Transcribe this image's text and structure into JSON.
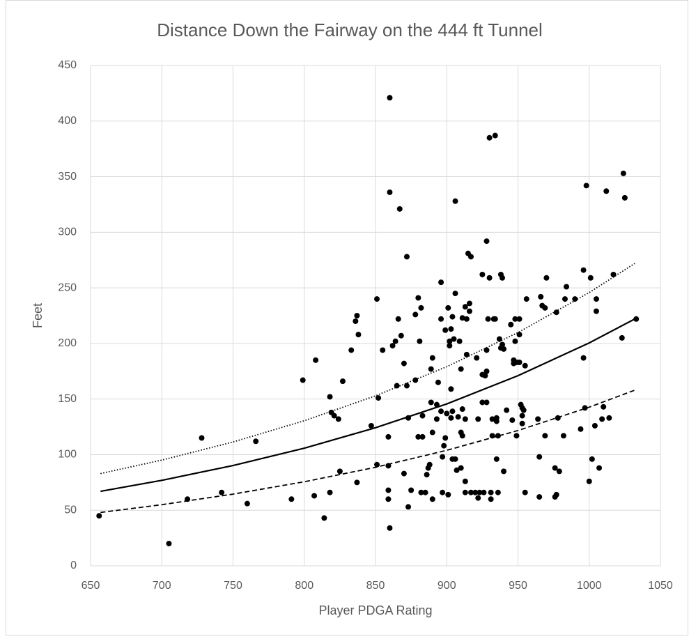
{
  "chart_data": {
    "type": "scatter",
    "title": "Distance Down the Fairway on the 444 ft Tunnel",
    "x_label": "Player PDGA Rating",
    "y_label": "Feet",
    "color": "#000000",
    "x": [
      656,
      705,
      718,
      728,
      742,
      760,
      766,
      791,
      799,
      807,
      808,
      814,
      818,
      818,
      819,
      821,
      824,
      825,
      827,
      833,
      836,
      837,
      837,
      838,
      847,
      851,
      851,
      852,
      855,
      859,
      859,
      859,
      859,
      860,
      860,
      860,
      862,
      864,
      865,
      866,
      867,
      868,
      870,
      870,
      872,
      872,
      873,
      873,
      875,
      878,
      878,
      880,
      880,
      881,
      882,
      882,
      883,
      883,
      886,
      885,
      887,
      888,
      889,
      889,
      890,
      890,
      890,
      893,
      893,
      894,
      896,
      896,
      896,
      897,
      897,
      898,
      899,
      899,
      900,
      901,
      901,
      902,
      902,
      903,
      904,
      903,
      903,
      904,
      904,
      905,
      906,
      906,
      906,
      907,
      908,
      909,
      910,
      910,
      910,
      911,
      911,
      911,
      913,
      913,
      913,
      913,
      914,
      914,
      915,
      916,
      916,
      917,
      917,
      920,
      921,
      922,
      922,
      923,
      925,
      925,
      925,
      926,
      927,
      928,
      928,
      928,
      928,
      929,
      930,
      930,
      931,
      931,
      932,
      932,
      933,
      934,
      934,
      935,
      935,
      935,
      936,
      936,
      937,
      938,
      938,
      940,
      939,
      939,
      940,
      942,
      945,
      946,
      947,
      947,
      948,
      948,
      949,
      949,
      951,
      951,
      951,
      952,
      953,
      953,
      953,
      954,
      955,
      955,
      956,
      964,
      965,
      965,
      966,
      967,
      969,
      969,
      970,
      976,
      976,
      977,
      977,
      978,
      979,
      982,
      983,
      984,
      990,
      994,
      996,
      996,
      997,
      998,
      1000,
      1001,
      1002,
      1004,
      1005,
      1005,
      1007,
      1009,
      1010,
      1012,
      1014,
      1017,
      1023,
      1024,
      1025,
      1033
    ],
    "values": [
      45,
      20,
      60,
      115,
      66,
      56,
      112,
      60,
      167,
      63,
      185,
      43,
      66,
      152,
      138,
      135,
      132,
      85,
      166,
      194,
      220,
      225,
      75,
      208,
      126,
      240,
      91,
      151,
      194,
      68,
      60,
      116,
      90,
      34,
      421,
      336,
      198,
      202,
      162,
      222,
      321,
      207,
      83,
      182,
      278,
      162,
      53,
      133,
      68,
      167,
      226,
      241,
      116,
      202,
      232,
      66,
      116,
      135,
      82,
      66,
      88,
      91,
      177,
      147,
      60,
      120,
      187,
      145,
      132,
      165,
      255,
      222,
      139,
      66,
      98,
      108,
      212,
      115,
      137,
      232,
      64,
      202,
      198,
      133,
      96,
      159,
      213,
      224,
      139,
      204,
      96,
      328,
      245,
      86,
      134,
      202,
      177,
      120,
      88,
      141,
      223,
      117,
      233,
      132,
      66,
      76,
      222,
      190,
      281,
      229,
      236,
      278,
      66,
      66,
      187,
      132,
      61,
      66,
      172,
      147,
      262,
      66,
      171,
      194,
      147,
      175,
      292,
      222,
      259,
      385,
      66,
      60,
      117,
      132,
      222,
      222,
      387,
      130,
      96,
      133,
      117,
      66,
      204,
      262,
      196,
      195,
      259,
      199,
      85,
      140,
      217,
      131,
      182,
      185,
      202,
      222,
      117,
      183,
      222,
      208,
      183,
      145,
      128,
      142,
      135,
      140,
      180,
      66,
      240,
      132,
      98,
      62,
      242,
      234,
      232,
      117,
      259,
      62,
      88,
      228,
      64,
      133,
      85,
      117,
      240,
      251,
      240,
      123,
      266,
      187,
      142,
      342,
      76,
      259,
      96,
      126,
      240,
      229,
      88,
      132,
      143,
      337,
      133,
      262,
      205,
      353,
      331,
      222
    ],
    "trendlines": [
      {
        "style": "dotted",
        "x": [
          657,
          700,
          750,
          800,
          850,
          900,
          950,
          1000,
          1032
        ],
        "values": [
          83,
          95.1,
          111.4,
          130.5,
          152.9,
          179.1,
          209.8,
          245.8,
          272
        ]
      },
      {
        "style": "solid",
        "x": [
          657,
          700,
          750,
          800,
          850,
          900,
          950,
          1000,
          1032
        ],
        "values": [
          67,
          76.9,
          90.2,
          105.8,
          124.2,
          145.6,
          171,
          200.5,
          222
        ]
      },
      {
        "style": "dashed",
        "x": [
          657,
          700,
          750,
          800,
          850,
          900,
          950,
          1000,
          1032
        ],
        "values": [
          48,
          55,
          64.5,
          75.6,
          88.6,
          103.9,
          121.7,
          142.7,
          158
        ]
      }
    ],
    "xlim": [
      650,
      1050
    ],
    "xticks": [
      650,
      700,
      750,
      800,
      850,
      900,
      950,
      1000,
      1050
    ],
    "ylim": [
      0,
      450
    ],
    "yticks": [
      0,
      50,
      100,
      150,
      200,
      250,
      300,
      350,
      400,
      450
    ],
    "grid": true
  }
}
